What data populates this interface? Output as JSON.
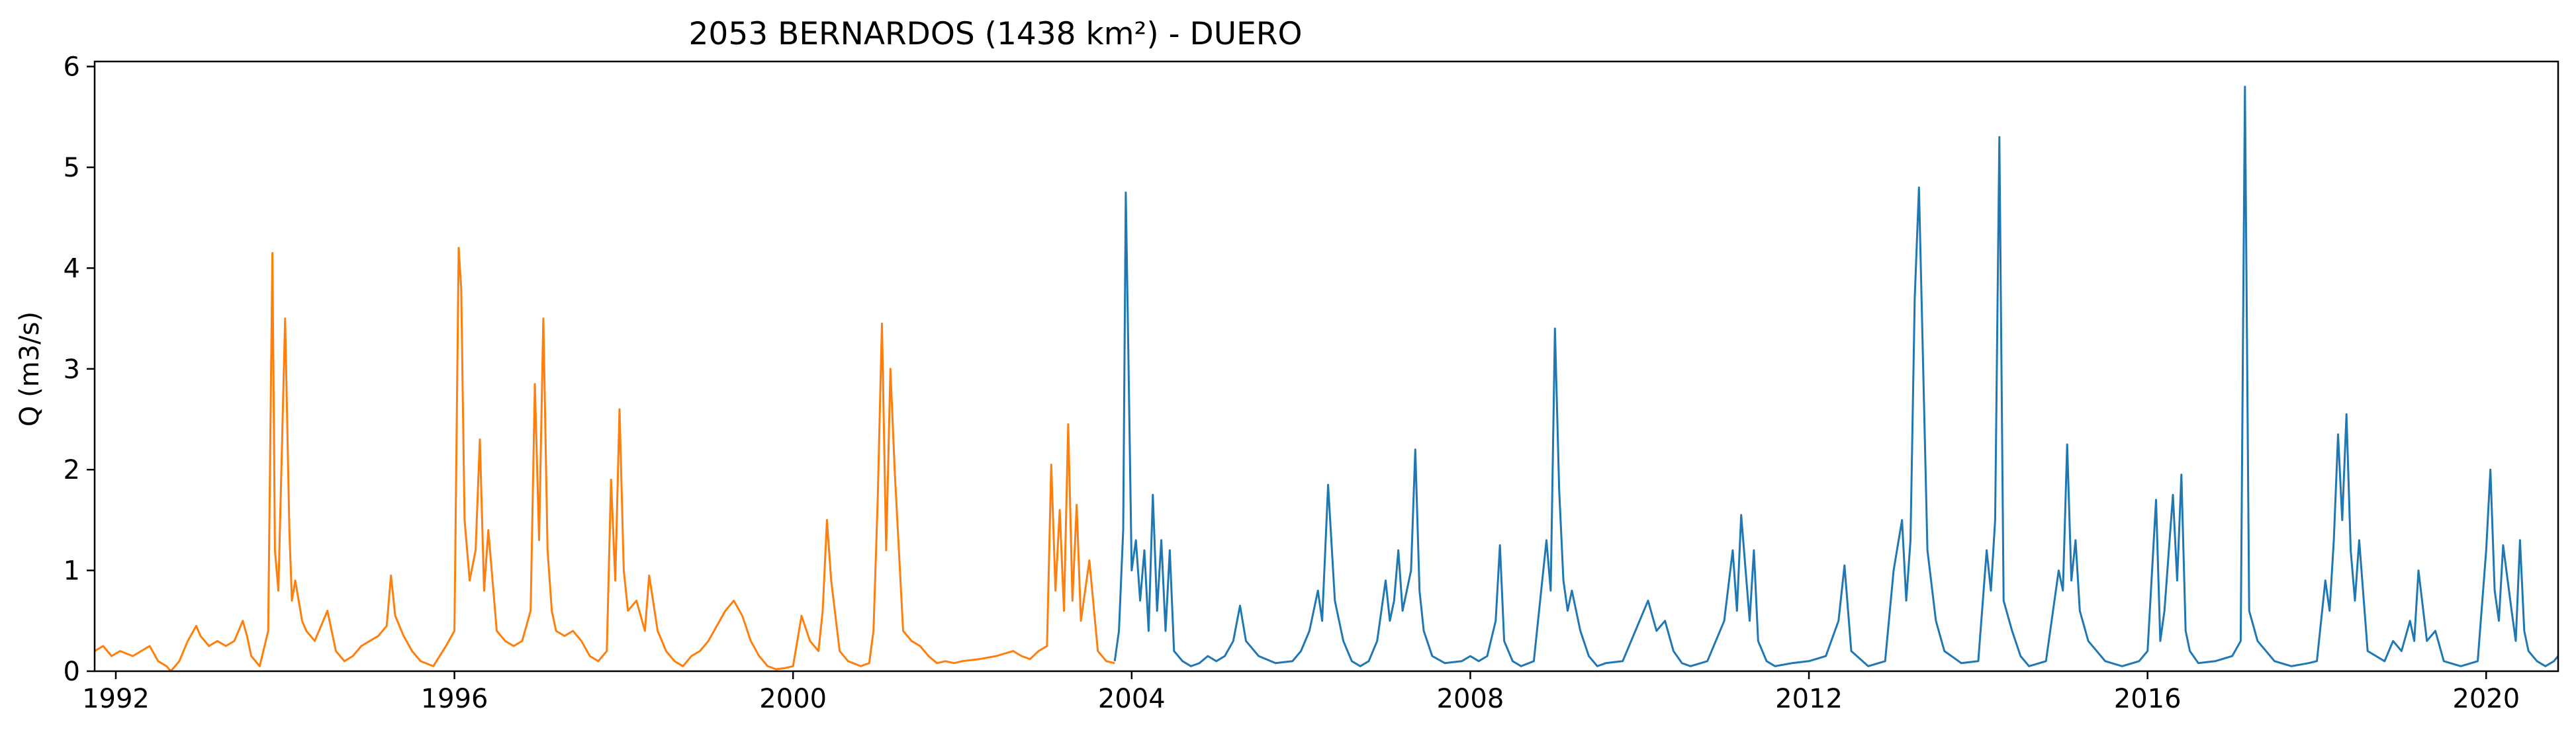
{
  "chart_data": {
    "type": "line",
    "title": "2053 BERNARDOS (1438 km²) - DUERO",
    "xlabel": "",
    "ylabel": "Q (m3/s)",
    "xlim": [
      1991.75,
      2020.85
    ],
    "ylim": [
      0,
      6.05
    ],
    "x_ticks": [
      1992,
      1996,
      2000,
      2004,
      2008,
      2012,
      2016,
      2020
    ],
    "x_tick_labels": [
      "1992",
      "1996",
      "2000",
      "2004",
      "2008",
      "2012",
      "2016",
      "2020"
    ],
    "y_ticks": [
      0,
      1,
      2,
      3,
      4,
      5,
      6
    ],
    "y_tick_labels": [
      "0",
      "1",
      "2",
      "3",
      "4",
      "5",
      "6"
    ],
    "grid": false,
    "legend": "none",
    "series": [
      {
        "color": "#ff7f0e",
        "x": [
          1991.75,
          1991.85,
          1991.95,
          1992.05,
          1992.2,
          1992.3,
          1992.4,
          1992.5,
          1992.6,
          1992.65,
          1992.75,
          1992.85,
          1992.95,
          1993.0,
          1993.1,
          1993.2,
          1993.3,
          1993.4,
          1993.5,
          1993.55,
          1993.6,
          1993.7,
          1993.8,
          1993.85,
          1993.88,
          1993.92,
          1994.0,
          1994.05,
          1994.08,
          1994.12,
          1994.2,
          1994.25,
          1994.35,
          1994.5,
          1994.6,
          1994.7,
          1994.8,
          1994.9,
          1995.0,
          1995.1,
          1995.2,
          1995.25,
          1995.3,
          1995.4,
          1995.5,
          1995.6,
          1995.75,
          1995.9,
          1996.0,
          1996.05,
          1996.08,
          1996.12,
          1996.18,
          1996.25,
          1996.3,
          1996.35,
          1996.4,
          1996.5,
          1996.6,
          1996.7,
          1996.8,
          1996.9,
          1996.95,
          1997.0,
          1997.05,
          1997.1,
          1997.15,
          1997.2,
          1997.3,
          1997.4,
          1997.5,
          1997.6,
          1997.7,
          1997.8,
          1997.85,
          1997.9,
          1997.95,
          1998.0,
          1998.05,
          1998.15,
          1998.25,
          1998.3,
          1998.4,
          1998.5,
          1998.6,
          1998.7,
          1998.8,
          1998.9,
          1999.0,
          1999.1,
          1999.2,
          1999.3,
          1999.4,
          1999.5,
          1999.6,
          1999.7,
          1999.8,
          1999.9,
          2000.0,
          2000.1,
          2000.2,
          2000.3,
          2000.35,
          2000.4,
          2000.45,
          2000.55,
          2000.65,
          2000.8,
          2000.9,
          2000.95,
          2001.0,
          2001.05,
          2001.1,
          2001.15,
          2001.2,
          2001.3,
          2001.4,
          2001.5,
          2001.6,
          2001.7,
          2001.8,
          2001.9,
          2002.0,
          2002.2,
          2002.4,
          2002.6,
          2002.7,
          2002.8,
          2002.9,
          2003.0,
          2003.05,
          2003.1,
          2003.15,
          2003.2,
          2003.25,
          2003.3,
          2003.35,
          2003.4,
          2003.5,
          2003.6,
          2003.7,
          2003.8
        ],
        "y": [
          0.2,
          0.25,
          0.15,
          0.2,
          0.15,
          0.2,
          0.25,
          0.1,
          0.05,
          0.0,
          0.1,
          0.3,
          0.45,
          0.35,
          0.25,
          0.3,
          0.25,
          0.3,
          0.5,
          0.35,
          0.15,
          0.05,
          0.4,
          4.15,
          1.2,
          0.8,
          3.5,
          1.4,
          0.7,
          0.9,
          0.5,
          0.4,
          0.3,
          0.6,
          0.2,
          0.1,
          0.15,
          0.25,
          0.3,
          0.35,
          0.45,
          0.95,
          0.55,
          0.35,
          0.2,
          0.1,
          0.05,
          0.25,
          0.4,
          4.2,
          3.8,
          1.5,
          0.9,
          1.2,
          2.3,
          0.8,
          1.4,
          0.4,
          0.3,
          0.25,
          0.3,
          0.6,
          2.85,
          1.3,
          3.5,
          1.2,
          0.6,
          0.4,
          0.35,
          0.4,
          0.3,
          0.15,
          0.1,
          0.2,
          1.9,
          0.9,
          2.6,
          1.0,
          0.6,
          0.7,
          0.4,
          0.95,
          0.4,
          0.2,
          0.1,
          0.05,
          0.15,
          0.2,
          0.3,
          0.45,
          0.6,
          0.7,
          0.55,
          0.3,
          0.15,
          0.05,
          0.02,
          0.03,
          0.05,
          0.55,
          0.3,
          0.2,
          0.6,
          1.5,
          0.9,
          0.2,
          0.1,
          0.05,
          0.08,
          0.4,
          1.7,
          3.45,
          1.2,
          3.0,
          2.0,
          0.4,
          0.3,
          0.25,
          0.15,
          0.08,
          0.1,
          0.08,
          0.1,
          0.12,
          0.15,
          0.2,
          0.15,
          0.12,
          0.2,
          0.25,
          2.05,
          0.8,
          1.6,
          0.6,
          2.45,
          0.7,
          1.65,
          0.5,
          1.1,
          0.2,
          0.1,
          0.08
        ]
      },
      {
        "color": "#1f77b4",
        "x": [
          2003.8,
          2003.85,
          2003.9,
          2003.93,
          2003.96,
          2004.0,
          2004.05,
          2004.1,
          2004.15,
          2004.2,
          2004.25,
          2004.3,
          2004.35,
          2004.4,
          2004.45,
          2004.5,
          2004.6,
          2004.7,
          2004.8,
          2004.9,
          2005.0,
          2005.1,
          2005.2,
          2005.28,
          2005.35,
          2005.5,
          2005.7,
          2005.9,
          2006.0,
          2006.1,
          2006.2,
          2006.25,
          2006.32,
          2006.4,
          2006.5,
          2006.6,
          2006.7,
          2006.8,
          2006.9,
          2007.0,
          2007.05,
          2007.1,
          2007.15,
          2007.2,
          2007.3,
          2007.35,
          2007.4,
          2007.45,
          2007.55,
          2007.7,
          2007.9,
          2008.0,
          2008.1,
          2008.2,
          2008.3,
          2008.35,
          2008.4,
          2008.5,
          2008.6,
          2008.75,
          2008.9,
          2008.95,
          2009.0,
          2009.05,
          2009.1,
          2009.15,
          2009.2,
          2009.3,
          2009.4,
          2009.5,
          2009.6,
          2009.8,
          2010.0,
          2010.1,
          2010.2,
          2010.3,
          2010.4,
          2010.5,
          2010.6,
          2010.8,
          2011.0,
          2011.1,
          2011.15,
          2011.2,
          2011.3,
          2011.35,
          2011.4,
          2011.5,
          2011.6,
          2011.8,
          2012.0,
          2012.2,
          2012.35,
          2012.42,
          2012.5,
          2012.7,
          2012.9,
          2013.0,
          2013.1,
          2013.15,
          2013.2,
          2013.25,
          2013.3,
          2013.4,
          2013.5,
          2013.6,
          2013.8,
          2014.0,
          2014.1,
          2014.15,
          2014.2,
          2014.25,
          2014.3,
          2014.4,
          2014.5,
          2014.6,
          2014.8,
          2014.95,
          2015.0,
          2015.05,
          2015.1,
          2015.15,
          2015.2,
          2015.3,
          2015.5,
          2015.7,
          2015.9,
          2016.0,
          2016.1,
          2016.15,
          2016.2,
          2016.3,
          2016.35,
          2016.4,
          2016.45,
          2016.5,
          2016.6,
          2016.8,
          2017.0,
          2017.1,
          2017.15,
          2017.2,
          2017.3,
          2017.5,
          2017.7,
          2017.9,
          2018.0,
          2018.1,
          2018.15,
          2018.2,
          2018.25,
          2018.3,
          2018.35,
          2018.4,
          2018.45,
          2018.5,
          2018.6,
          2018.8,
          2018.9,
          2019.0,
          2019.1,
          2019.15,
          2019.2,
          2019.3,
          2019.4,
          2019.5,
          2019.7,
          2019.9,
          2020.0,
          2020.05,
          2020.1,
          2020.15,
          2020.2,
          2020.3,
          2020.35,
          2020.4,
          2020.45,
          2020.5,
          2020.6,
          2020.7,
          2020.8,
          2020.85
        ],
        "y": [
          0.1,
          0.4,
          1.4,
          4.75,
          3.2,
          1.0,
          1.3,
          0.7,
          1.2,
          0.4,
          1.75,
          0.6,
          1.3,
          0.4,
          1.2,
          0.2,
          0.1,
          0.05,
          0.08,
          0.15,
          0.1,
          0.15,
          0.3,
          0.65,
          0.3,
          0.15,
          0.08,
          0.1,
          0.2,
          0.4,
          0.8,
          0.5,
          1.85,
          0.7,
          0.3,
          0.1,
          0.05,
          0.1,
          0.3,
          0.9,
          0.5,
          0.7,
          1.2,
          0.6,
          1.0,
          2.2,
          0.8,
          0.4,
          0.15,
          0.08,
          0.1,
          0.15,
          0.1,
          0.15,
          0.5,
          1.25,
          0.3,
          0.1,
          0.05,
          0.1,
          1.3,
          0.8,
          3.4,
          1.8,
          0.9,
          0.6,
          0.8,
          0.4,
          0.15,
          0.05,
          0.08,
          0.1,
          0.5,
          0.7,
          0.4,
          0.5,
          0.2,
          0.08,
          0.05,
          0.1,
          0.5,
          1.2,
          0.6,
          1.55,
          0.5,
          1.2,
          0.3,
          0.1,
          0.05,
          0.08,
          0.1,
          0.15,
          0.5,
          1.05,
          0.2,
          0.05,
          0.1,
          1.0,
          1.5,
          0.7,
          1.3,
          3.7,
          4.8,
          1.2,
          0.5,
          0.2,
          0.08,
          0.1,
          1.2,
          0.8,
          1.5,
          5.3,
          0.7,
          0.4,
          0.15,
          0.05,
          0.1,
          1.0,
          0.8,
          2.25,
          0.9,
          1.3,
          0.6,
          0.3,
          0.1,
          0.05,
          0.1,
          0.2,
          1.7,
          0.3,
          0.6,
          1.75,
          0.9,
          1.95,
          0.4,
          0.2,
          0.08,
          0.1,
          0.15,
          0.3,
          5.8,
          0.6,
          0.3,
          0.1,
          0.05,
          0.08,
          0.1,
          0.9,
          0.6,
          1.3,
          2.35,
          1.5,
          2.55,
          1.2,
          0.7,
          1.3,
          0.2,
          0.1,
          0.3,
          0.2,
          0.5,
          0.3,
          1.0,
          0.3,
          0.4,
          0.1,
          0.05,
          0.1,
          1.2,
          2.0,
          0.8,
          0.5,
          1.25,
          0.6,
          0.3,
          1.3,
          0.4,
          0.2,
          0.1,
          0.05,
          0.1,
          0.15
        ]
      }
    ]
  }
}
